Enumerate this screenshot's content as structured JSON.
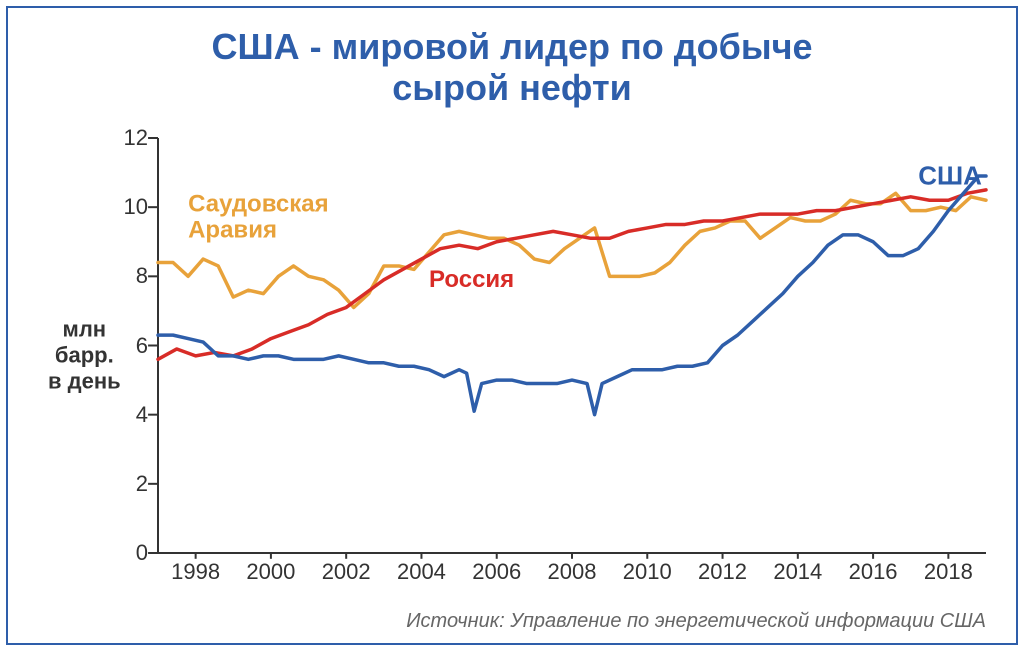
{
  "title": "США - мировой лидер по добыче\nсырой нефти",
  "title_fontsize": 36,
  "title_color": "#2e5eaa",
  "frame_border_color": "#2e5eaa",
  "background_color": "#ffffff",
  "y_axis_label": "млн\nбарр.\nв день",
  "y_axis_label_fontsize": 22,
  "y_axis_label_color": "#333333",
  "source_text": "Источник: Управление по энергетической информации США",
  "source_fontsize": 20,
  "source_color": "#666666",
  "chart": {
    "type": "line",
    "xlim": [
      1997,
      2019
    ],
    "ylim": [
      0,
      12
    ],
    "ytick_step": 2,
    "yticks": [
      0,
      2,
      4,
      6,
      8,
      10,
      12
    ],
    "xticks": [
      1998,
      2000,
      2002,
      2004,
      2006,
      2008,
      2010,
      2012,
      2014,
      2016,
      2018
    ],
    "tick_label_fontsize": 22,
    "tick_label_color": "#333333",
    "axis_color": "#333333",
    "axis_line_width": 2,
    "grid": false,
    "line_width": 3.5,
    "series": [
      {
        "id": "saudi",
        "label": "Саудовская\nАравия",
        "color": "#e8a23a",
        "label_pos_x": 1997.8,
        "label_pos_y": 9.7,
        "label_fontsize": 24,
        "points": [
          [
            1997.0,
            8.4
          ],
          [
            1997.4,
            8.4
          ],
          [
            1997.8,
            8.0
          ],
          [
            1998.2,
            8.5
          ],
          [
            1998.6,
            8.3
          ],
          [
            1999.0,
            7.4
          ],
          [
            1999.4,
            7.6
          ],
          [
            1999.8,
            7.5
          ],
          [
            2000.2,
            8.0
          ],
          [
            2000.6,
            8.3
          ],
          [
            2001.0,
            8.0
          ],
          [
            2001.4,
            7.9
          ],
          [
            2001.8,
            7.6
          ],
          [
            2002.2,
            7.1
          ],
          [
            2002.6,
            7.5
          ],
          [
            2003.0,
            8.3
          ],
          [
            2003.4,
            8.3
          ],
          [
            2003.8,
            8.2
          ],
          [
            2004.2,
            8.7
          ],
          [
            2004.6,
            9.2
          ],
          [
            2005.0,
            9.3
          ],
          [
            2005.4,
            9.2
          ],
          [
            2005.8,
            9.1
          ],
          [
            2006.2,
            9.1
          ],
          [
            2006.6,
            8.9
          ],
          [
            2007.0,
            8.5
          ],
          [
            2007.4,
            8.4
          ],
          [
            2007.8,
            8.8
          ],
          [
            2008.2,
            9.1
          ],
          [
            2008.6,
            9.4
          ],
          [
            2009.0,
            8.0
          ],
          [
            2009.4,
            8.0
          ],
          [
            2009.8,
            8.0
          ],
          [
            2010.2,
            8.1
          ],
          [
            2010.6,
            8.4
          ],
          [
            2011.0,
            8.9
          ],
          [
            2011.4,
            9.3
          ],
          [
            2011.8,
            9.4
          ],
          [
            2012.2,
            9.6
          ],
          [
            2012.6,
            9.6
          ],
          [
            2013.0,
            9.1
          ],
          [
            2013.4,
            9.4
          ],
          [
            2013.8,
            9.7
          ],
          [
            2014.2,
            9.6
          ],
          [
            2014.6,
            9.6
          ],
          [
            2015.0,
            9.8
          ],
          [
            2015.4,
            10.2
          ],
          [
            2015.8,
            10.1
          ],
          [
            2016.2,
            10.1
          ],
          [
            2016.6,
            10.4
          ],
          [
            2017.0,
            9.9
          ],
          [
            2017.4,
            9.9
          ],
          [
            2017.8,
            10.0
          ],
          [
            2018.2,
            9.9
          ],
          [
            2018.6,
            10.3
          ],
          [
            2019.0,
            10.2
          ]
        ]
      },
      {
        "id": "russia",
        "label": "Россия",
        "color": "#d82c27",
        "label_pos_x": 2004.2,
        "label_pos_y": 7.9,
        "label_fontsize": 24,
        "points": [
          [
            1997.0,
            5.6
          ],
          [
            1997.5,
            5.9
          ],
          [
            1998.0,
            5.7
          ],
          [
            1998.5,
            5.8
          ],
          [
            1999.0,
            5.7
          ],
          [
            1999.5,
            5.9
          ],
          [
            2000.0,
            6.2
          ],
          [
            2000.5,
            6.4
          ],
          [
            2001.0,
            6.6
          ],
          [
            2001.5,
            6.9
          ],
          [
            2002.0,
            7.1
          ],
          [
            2002.5,
            7.5
          ],
          [
            2003.0,
            7.9
          ],
          [
            2003.5,
            8.2
          ],
          [
            2004.0,
            8.5
          ],
          [
            2004.5,
            8.8
          ],
          [
            2005.0,
            8.9
          ],
          [
            2005.5,
            8.8
          ],
          [
            2006.0,
            9.0
          ],
          [
            2006.5,
            9.1
          ],
          [
            2007.0,
            9.2
          ],
          [
            2007.5,
            9.3
          ],
          [
            2008.0,
            9.2
          ],
          [
            2008.5,
            9.1
          ],
          [
            2009.0,
            9.1
          ],
          [
            2009.5,
            9.3
          ],
          [
            2010.0,
            9.4
          ],
          [
            2010.5,
            9.5
          ],
          [
            2011.0,
            9.5
          ],
          [
            2011.5,
            9.6
          ],
          [
            2012.0,
            9.6
          ],
          [
            2012.5,
            9.7
          ],
          [
            2013.0,
            9.8
          ],
          [
            2013.5,
            9.8
          ],
          [
            2014.0,
            9.8
          ],
          [
            2014.5,
            9.9
          ],
          [
            2015.0,
            9.9
          ],
          [
            2015.5,
            10.0
          ],
          [
            2016.0,
            10.1
          ],
          [
            2016.5,
            10.2
          ],
          [
            2017.0,
            10.3
          ],
          [
            2017.5,
            10.2
          ],
          [
            2018.0,
            10.2
          ],
          [
            2018.5,
            10.4
          ],
          [
            2019.0,
            10.5
          ]
        ]
      },
      {
        "id": "usa",
        "label": "США",
        "color": "#2e5eaa",
        "label_pos_x": 2017.2,
        "label_pos_y": 10.9,
        "label_fontsize": 26,
        "points": [
          [
            1997.0,
            6.3
          ],
          [
            1997.4,
            6.3
          ],
          [
            1997.8,
            6.2
          ],
          [
            1998.2,
            6.1
          ],
          [
            1998.6,
            5.7
          ],
          [
            1999.0,
            5.7
          ],
          [
            1999.4,
            5.6
          ],
          [
            1999.8,
            5.7
          ],
          [
            2000.2,
            5.7
          ],
          [
            2000.6,
            5.6
          ],
          [
            2001.0,
            5.6
          ],
          [
            2001.4,
            5.6
          ],
          [
            2001.8,
            5.7
          ],
          [
            2002.2,
            5.6
          ],
          [
            2002.6,
            5.5
          ],
          [
            2003.0,
            5.5
          ],
          [
            2003.4,
            5.4
          ],
          [
            2003.8,
            5.4
          ],
          [
            2004.2,
            5.3
          ],
          [
            2004.6,
            5.1
          ],
          [
            2005.0,
            5.3
          ],
          [
            2005.2,
            5.2
          ],
          [
            2005.4,
            4.1
          ],
          [
            2005.6,
            4.9
          ],
          [
            2006.0,
            5.0
          ],
          [
            2006.4,
            5.0
          ],
          [
            2006.8,
            4.9
          ],
          [
            2007.2,
            4.9
          ],
          [
            2007.6,
            4.9
          ],
          [
            2008.0,
            5.0
          ],
          [
            2008.4,
            4.9
          ],
          [
            2008.6,
            4.0
          ],
          [
            2008.8,
            4.9
          ],
          [
            2009.2,
            5.1
          ],
          [
            2009.6,
            5.3
          ],
          [
            2010.0,
            5.3
          ],
          [
            2010.4,
            5.3
          ],
          [
            2010.8,
            5.4
          ],
          [
            2011.2,
            5.4
          ],
          [
            2011.6,
            5.5
          ],
          [
            2012.0,
            6.0
          ],
          [
            2012.4,
            6.3
          ],
          [
            2012.8,
            6.7
          ],
          [
            2013.2,
            7.1
          ],
          [
            2013.6,
            7.5
          ],
          [
            2014.0,
            8.0
          ],
          [
            2014.4,
            8.4
          ],
          [
            2014.8,
            8.9
          ],
          [
            2015.2,
            9.2
          ],
          [
            2015.6,
            9.2
          ],
          [
            2016.0,
            9.0
          ],
          [
            2016.4,
            8.6
          ],
          [
            2016.8,
            8.6
          ],
          [
            2017.2,
            8.8
          ],
          [
            2017.6,
            9.3
          ],
          [
            2018.0,
            9.9
          ],
          [
            2018.4,
            10.4
          ],
          [
            2018.8,
            10.9
          ],
          [
            2019.0,
            10.9
          ]
        ]
      }
    ]
  }
}
